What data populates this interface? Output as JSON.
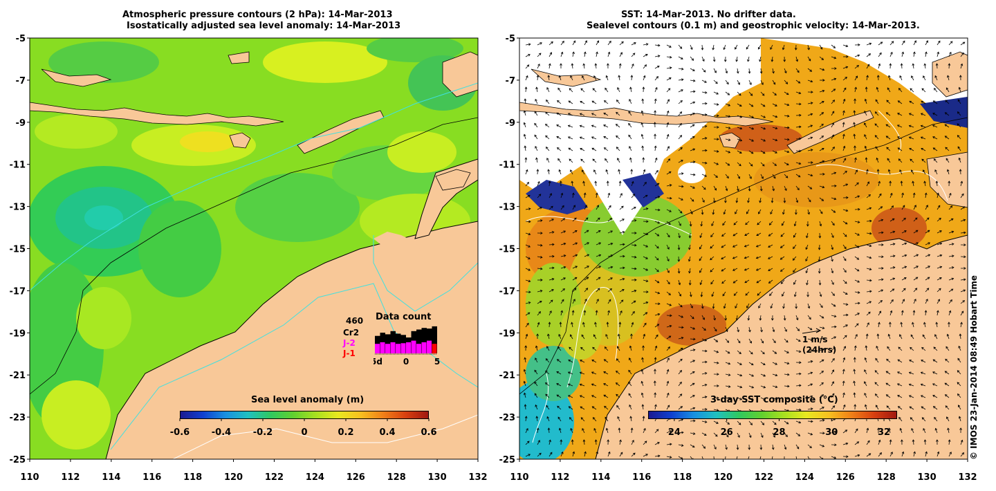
{
  "left_panel": {
    "title_line1": "Atmospheric pressure contours (2 hPa): 14-Mar-2013",
    "title_line2": "Isostatically adjusted sea level anomaly: 14-Mar-2013",
    "colorbar": {
      "label": "Sea level anomaly (m)",
      "ticks": [
        "-0.6",
        "-0.4",
        "-0.2",
        "0",
        "0.2",
        "0.4",
        "0.6"
      ],
      "range": [
        -0.6,
        0.6
      ]
    },
    "data_count": {
      "title": "Data count",
      "count": "460",
      "sources": [
        {
          "label": "Cr2",
          "color": "#000000"
        },
        {
          "label": "J-2",
          "color": "#ff00ff"
        },
        {
          "label": "J-1",
          "color": "#ff0000"
        }
      ],
      "x_ticks": [
        "-5d",
        "0",
        "5"
      ],
      "black_bars": [
        0.55,
        0.65,
        0.6,
        0.7,
        0.62,
        0.58,
        0.5,
        0.7,
        0.75,
        0.8,
        0.78,
        0.85
      ],
      "magenta_bars": [
        0.3,
        0.35,
        0.3,
        0.35,
        0.3,
        0.32,
        0.35,
        0.4,
        0.3,
        0.35,
        0.4,
        0.2
      ],
      "red_bars": [
        0,
        0,
        0,
        0,
        0,
        0,
        0,
        0,
        0,
        0,
        0,
        0.3
      ]
    }
  },
  "right_panel": {
    "title_line1": "SST: 14-Mar-2013. No drifter data.",
    "title_line2": "Sealevel contours (0.1 m) and geostrophic velocity: 14-Mar-2013.",
    "colorbar": {
      "label": "3-day SST composite (°C)",
      "ticks": [
        "24",
        "26",
        "28",
        "30",
        "32"
      ],
      "range": [
        23,
        32.5
      ]
    },
    "scale_label": "1 m/s",
    "scale_sublabel": "(24hrs)"
  },
  "axes": {
    "lon_range": [
      110,
      132
    ],
    "lat_range": [
      -25,
      -5
    ],
    "lon_ticks": [
      "110",
      "112",
      "114",
      "116",
      "118",
      "120",
      "122",
      "124",
      "126",
      "128",
      "130",
      "132"
    ],
    "lat_ticks": [
      "-5",
      "-7",
      "-9",
      "-11",
      "-13",
      "-15",
      "-17",
      "-19",
      "-21",
      "-23",
      "-25"
    ]
  },
  "credit": "© IMOS 23-Jan-2014 08:49 Hobart Time",
  "colors": {
    "land": "#f8c898",
    "ocean_left_base": "#88dd22",
    "ocean_right_base": "#f0a818",
    "cloud": "#ffffff",
    "contour_cyan": "#40e0e0",
    "coastline": "#000000"
  }
}
